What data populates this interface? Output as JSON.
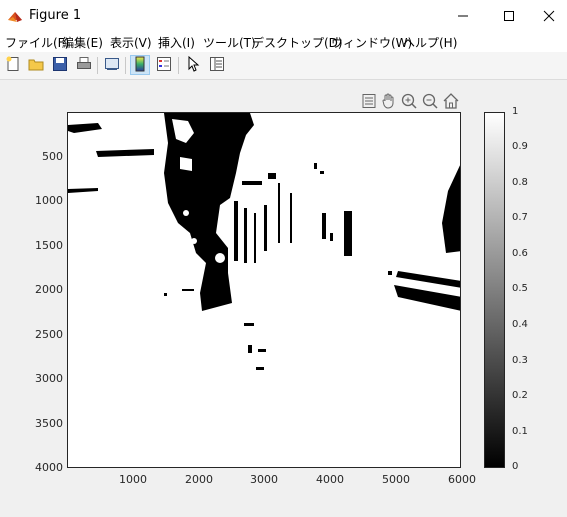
{
  "window": {
    "title": "Figure 1"
  },
  "menu": {
    "items": [
      {
        "label": "ファイル(F)"
      },
      {
        "label": "編集(E)"
      },
      {
        "label": "表示(V)"
      },
      {
        "label": "挿入(I)"
      },
      {
        "label": "ツール(T)"
      },
      {
        "label": "デスクトップ(D)"
      },
      {
        "label": "ウィンドウ(W)"
      },
      {
        "label": "ヘルプ(H)"
      }
    ]
  },
  "toolbar": {
    "icons": [
      "new-figure-icon",
      "open-file-icon",
      "save-icon",
      "print-icon",
      "link-plot-icon",
      "insert-colorbar-icon",
      "insert-legend-icon",
      "select-arrow-icon",
      "property-inspector-icon"
    ]
  },
  "axes_toolbar": {
    "icons": [
      "save-export-icon",
      "pan-hand-icon",
      "zoom-in-icon",
      "zoom-out-icon",
      "home-icon"
    ]
  },
  "chart_data": {
    "type": "heatmap",
    "xlim": [
      0,
      6000
    ],
    "ylim": [
      4000,
      0
    ],
    "x_ticks": [
      "1000",
      "2000",
      "3000",
      "4000",
      "5000",
      "6000"
    ],
    "y_ticks": [
      "500",
      "1000",
      "1500",
      "2000",
      "2500",
      "3000",
      "3500",
      "4000"
    ],
    "colormap": "gray",
    "colorbar": {
      "range": [
        0,
        1
      ],
      "ticks": [
        "0",
        "0.1",
        "0.2",
        "0.3",
        "0.4",
        "0.5",
        "0.6",
        "0.7",
        "0.8",
        "0.9",
        "1"
      ]
    },
    "grid": false
  },
  "colors": {
    "titlebar": "#ffffff",
    "toolbar_active": "#cce4f7",
    "axes_border": "#262626"
  }
}
